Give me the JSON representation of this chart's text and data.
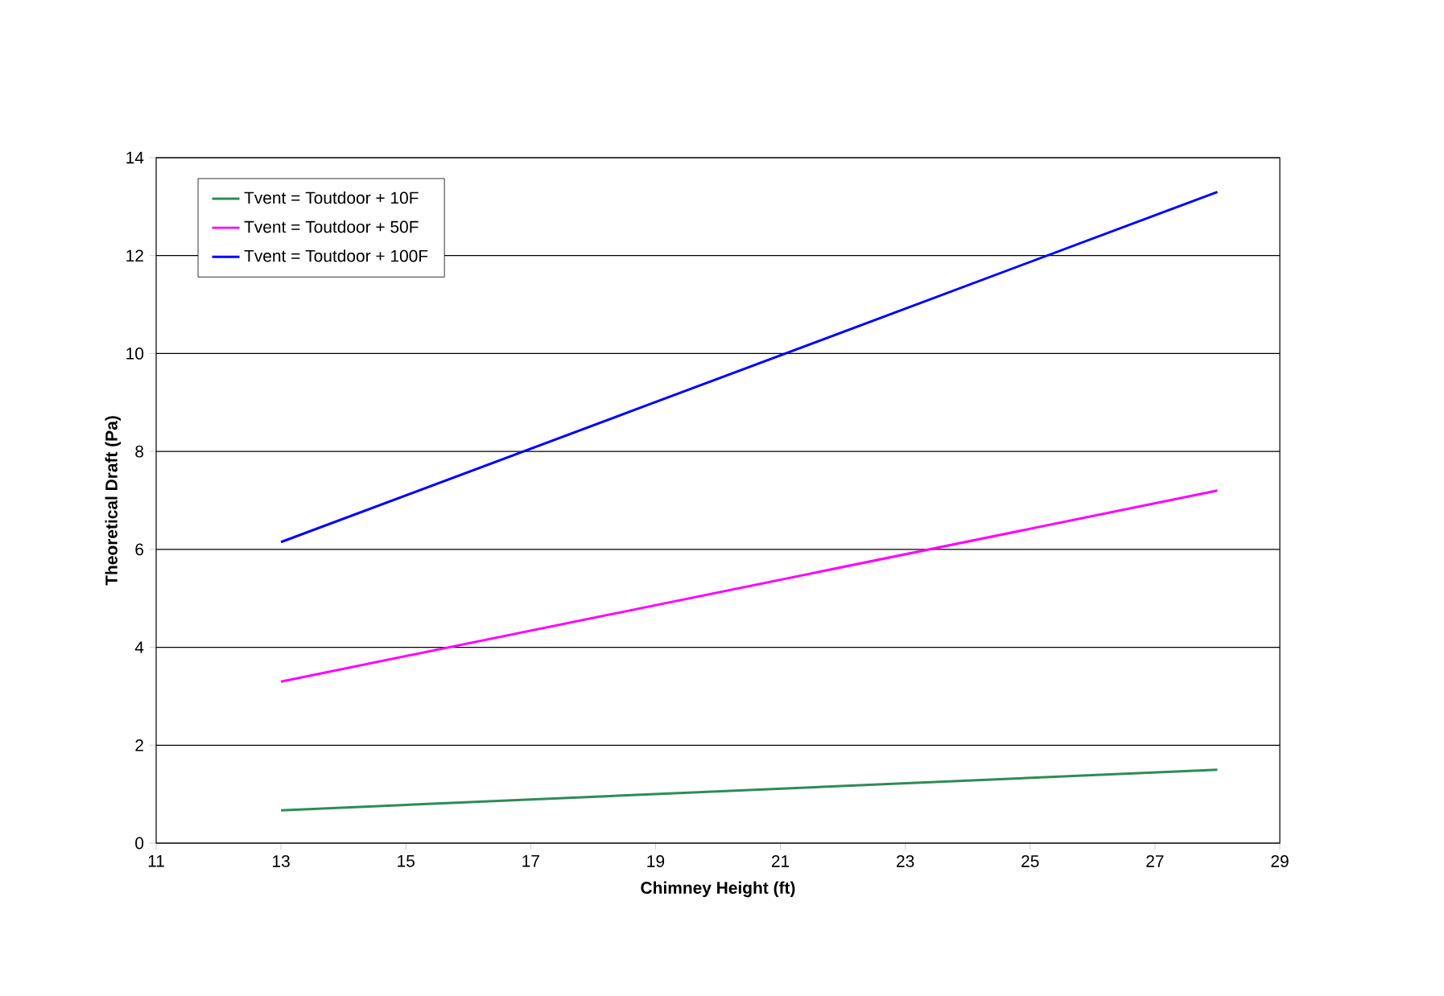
{
  "chart_data": {
    "type": "line",
    "xlabel": "Chimney Height (ft)",
    "ylabel": "Theoretical Draft (Pa)",
    "x": [
      13,
      28
    ],
    "series": [
      {
        "name": "Tvent = Toutdoor + 10F",
        "color": "#2e8b57",
        "values": [
          0.67,
          1.5
        ]
      },
      {
        "name": "Tvent = Toutdoor + 50F",
        "color": "#ff00ff",
        "values": [
          3.3,
          7.2
        ]
      },
      {
        "name": "Tvent = Toutdoor + 100F",
        "color": "#0000ff",
        "values": [
          6.15,
          13.3
        ]
      }
    ],
    "xlim": [
      11,
      29
    ],
    "xticks": [
      11,
      13,
      15,
      17,
      19,
      21,
      23,
      25,
      27,
      29
    ],
    "ylim": [
      0,
      14
    ],
    "yticks": [
      0,
      2,
      4,
      6,
      8,
      10,
      12,
      14
    ],
    "grid": "y",
    "legend": "top left",
    "marker": "none",
    "line_style": "solid"
  }
}
